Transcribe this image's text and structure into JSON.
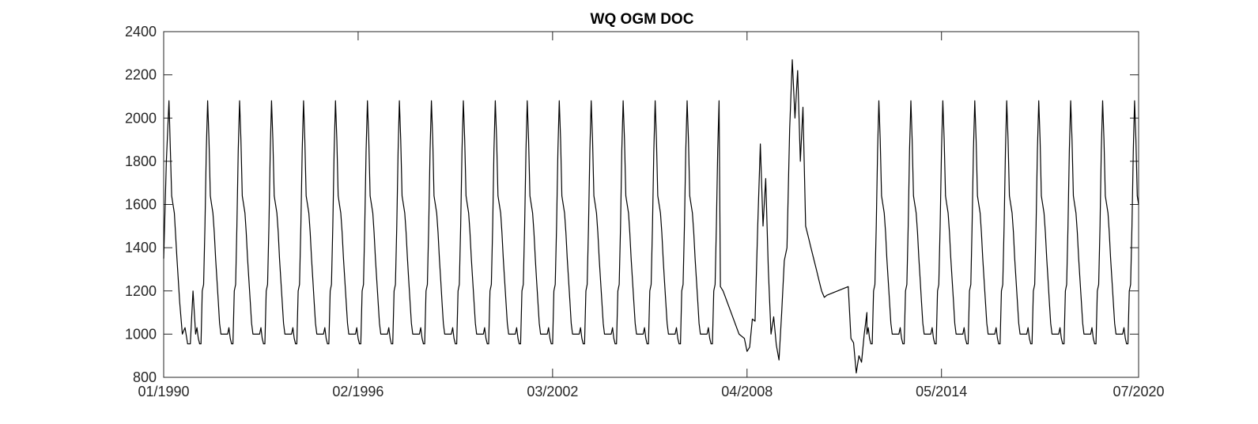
{
  "chart_data": {
    "type": "line",
    "title": "WQ OGM DOC",
    "xlabel": "",
    "ylabel": "",
    "xlim": [
      "1990-01",
      "2020-07"
    ],
    "ylim": [
      800,
      2400
    ],
    "grid": false,
    "x_ticks": [
      "01/1990",
      "02/1996",
      "03/2002",
      "04/2008",
      "05/2014",
      "07/2020"
    ],
    "y_ticks": [
      800,
      1000,
      1200,
      1400,
      1600,
      1800,
      2000,
      2200,
      2400
    ],
    "line_color": "#000000",
    "seasonal_cycle": {
      "description_years": "1990-2007 and 2012-2020 repeat the same annual cycle",
      "month_offsets": [
        0,
        0.5,
        1,
        1.5,
        2,
        2.5,
        3,
        3.5,
        4,
        4.5,
        5,
        5.5,
        6,
        6.5,
        7,
        7.5,
        8,
        8.5,
        9,
        9.5,
        10,
        10.5,
        11,
        11.5
      ],
      "values": [
        1000,
        1030,
        980,
        955,
        955,
        1200,
        1230,
        1500,
        1850,
        2080,
        1900,
        1640,
        1600,
        1560,
        1470,
        1350,
        1250,
        1150,
        1050,
        1000,
        1000,
        1000,
        1000,
        1000
      ]
    },
    "series": [
      {
        "x": [
          "1990-01-01",
          "1990-02-01",
          "1990-03-01",
          "1990-04-01",
          "1990-05-01",
          "1990-06-01",
          "1990-07-01",
          "1990-08-01",
          "1990-09-01",
          "1990-10-01",
          "1990-11-01",
          "1990-12-01"
        ],
        "y": [
          1350,
          1800,
          2080,
          1640,
          1560,
          1350,
          1150,
          1000,
          1030,
          955,
          955,
          1200
        ]
      },
      {
        "x": [
          "2007-06-01",
          "2007-07-01",
          "2007-10-01",
          "2008-01-01",
          "2008-03-01",
          "2008-04-01",
          "2008-05-01",
          "2008-06-01",
          "2008-07-01",
          "2008-08-01",
          "2008-09-01",
          "2008-10-01",
          "2008-11-01",
          "2008-12-01",
          "2009-01-01",
          "2009-02-01",
          "2009-03-01",
          "2009-04-01",
          "2009-05-01",
          "2009-06-01",
          "2009-07-01",
          "2009-08-01",
          "2009-09-01",
          "2009-10-01",
          "2009-11-01",
          "2009-12-01",
          "2010-01-01",
          "2010-02-01",
          "2010-03-01",
          "2010-04-01",
          "2010-05-01",
          "2010-06-01",
          "2010-07-01",
          "2010-08-01",
          "2010-09-01",
          "2010-10-01",
          "2011-06-01",
          "2011-07-01",
          "2011-08-01",
          "2011-09-01",
          "2011-10-01",
          "2011-11-01",
          "2011-12-01",
          "2012-01-01"
        ],
        "y": [
          1220,
          1200,
          1100,
          1000,
          980,
          920,
          940,
          1070,
          1060,
          1500,
          1880,
          1500,
          1720,
          1300,
          1000,
          1080,
          950,
          880,
          1100,
          1340,
          1400,
          1950,
          2270,
          2000,
          2220,
          1800,
          2050,
          1500,
          1450,
          1400,
          1350,
          1300,
          1250,
          1200,
          1170,
          1180,
          1220,
          980,
          960,
          820,
          900,
          870,
          1000,
          1100
        ]
      }
    ]
  }
}
